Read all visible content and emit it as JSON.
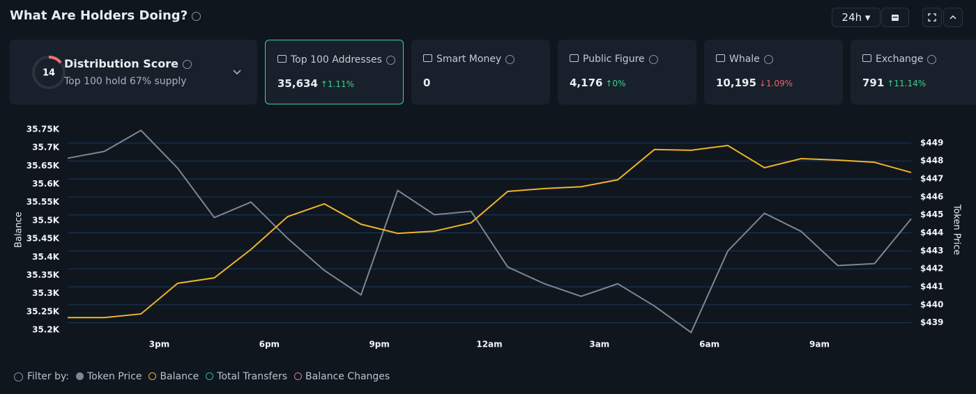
{
  "header": {
    "title": "What Are Holders Doing?",
    "period": "24h"
  },
  "score": {
    "label": "Distribution Score",
    "value": 14,
    "caption": "Top 100 hold 67% supply"
  },
  "cards": [
    {
      "label": "Top 100 Addresses",
      "value": "35,634",
      "change": "1.11%",
      "direction": "up",
      "selected": true
    },
    {
      "label": "Smart Money",
      "value": "0"
    },
    {
      "label": "Public Figure",
      "value": "4,176",
      "change": "0%",
      "direction": "up"
    },
    {
      "label": "Whale",
      "value": "10,195",
      "change": "1.09%",
      "direction": "down"
    },
    {
      "label": "Exchange",
      "value": "791",
      "change": "11.14%",
      "direction": "up"
    }
  ],
  "chart_data": {
    "type": "line",
    "ylabel": "Balance",
    "y2label": "Token Price",
    "grid": true,
    "x": [
      12.5,
      13.5,
      14.5,
      15.5,
      16.5,
      17.5,
      18.5,
      19.5,
      20.5,
      21.5,
      22.5,
      23.5,
      24.5,
      25.5,
      26.5,
      27.5,
      28.5,
      29.5,
      30.5,
      31.5,
      32.5,
      33.5,
      34.5,
      35.5
    ],
    "xlim": [
      12.5,
      35.5
    ],
    "xticks": [
      {
        "value": 15,
        "label": "3pm"
      },
      {
        "value": 18,
        "label": "6pm"
      },
      {
        "value": 21,
        "label": "9pm"
      },
      {
        "value": 24,
        "label": "12am"
      },
      {
        "value": 27,
        "label": "3am"
      },
      {
        "value": 30,
        "label": "6am"
      },
      {
        "value": 33,
        "label": "9am"
      }
    ],
    "ylim": [
      35200,
      35750
    ],
    "yticks": [
      {
        "value": 35200,
        "label": "35.2K"
      },
      {
        "value": 35250,
        "label": "35.25K"
      },
      {
        "value": 35300,
        "label": "35.3K"
      },
      {
        "value": 35350,
        "label": "35.35K"
      },
      {
        "value": 35400,
        "label": "35.4K"
      },
      {
        "value": 35450,
        "label": "35.45K"
      },
      {
        "value": 35500,
        "label": "35.5K"
      },
      {
        "value": 35550,
        "label": "35.55K"
      },
      {
        "value": 35600,
        "label": "35.6K"
      },
      {
        "value": 35650,
        "label": "35.65K"
      },
      {
        "value": 35700,
        "label": "35.7K"
      },
      {
        "value": 35750,
        "label": "35.75K"
      }
    ],
    "y2lim": [
      438.6,
      449.75
    ],
    "y2ticks": [
      {
        "value": 439,
        "label": "$439"
      },
      {
        "value": 440,
        "label": "$440"
      },
      {
        "value": 441,
        "label": "$441"
      },
      {
        "value": 442,
        "label": "$442"
      },
      {
        "value": 443,
        "label": "$443"
      },
      {
        "value": 444,
        "label": "$444"
      },
      {
        "value": 445,
        "label": "$445"
      },
      {
        "value": 446,
        "label": "$446"
      },
      {
        "value": 447,
        "label": "$447"
      },
      {
        "value": 448,
        "label": "$448"
      },
      {
        "value": 449,
        "label": "$449"
      }
    ],
    "series": [
      {
        "name": "Token Price",
        "color": "#7d8795",
        "axis": "y2",
        "values": [
          448.15,
          448.53,
          449.7,
          447.6,
          444.85,
          445.71,
          443.69,
          441.91,
          440.55,
          446.36,
          445.01,
          445.2,
          442.1,
          441.17,
          440.47,
          441.17,
          439.93,
          438.46,
          442.99,
          445.09,
          444.08,
          442.18,
          442.29,
          444.78
        ]
      },
      {
        "name": "Balance",
        "color": "#f0b429",
        "values": [
          35234,
          35234,
          35244,
          35328,
          35343,
          35421,
          35511,
          35546,
          35490,
          35465,
          35471,
          35494,
          35580,
          35588,
          35593,
          35612,
          35695,
          35693,
          35706,
          35645,
          35670,
          35666,
          35660,
          35632
        ]
      }
    ],
    "filter_label": "Filter by:",
    "extra_filters": [
      {
        "name": "Total Transfers",
        "color": "#2bb5a5"
      },
      {
        "name": "Balance Changes",
        "color": "#e0709a"
      }
    ]
  }
}
